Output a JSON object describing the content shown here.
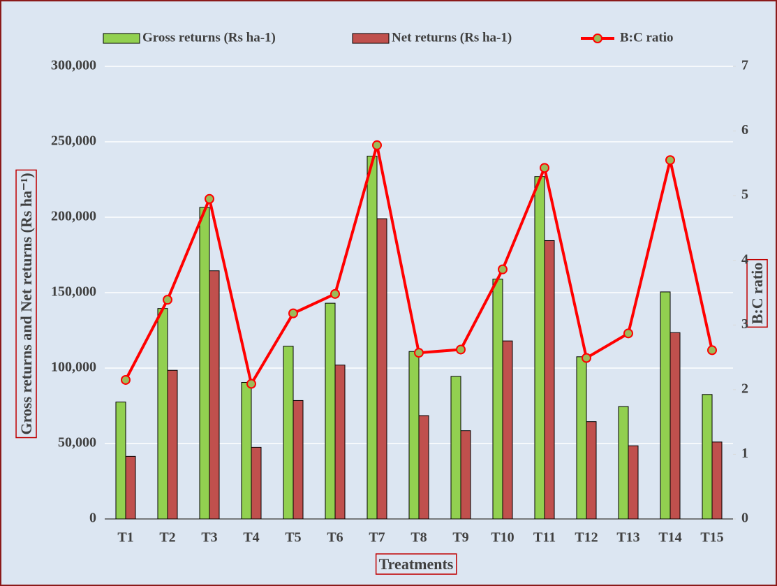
{
  "chart_data": {
    "type": "bar-line",
    "x_label": "Treatments",
    "y_label": "Gross returns and Net returns (Rs ha⁻¹)",
    "y2_label": "B:C ratio",
    "categories": [
      "T1",
      "T2",
      "T3",
      "T4",
      "T5",
      "T6",
      "T7",
      "T8",
      "T9",
      "T10",
      "T11",
      "T12",
      "T13",
      "T14",
      "T15"
    ],
    "series": [
      {
        "name": "Gross returns (Rs ha-1)",
        "type": "bar",
        "color": "#92d050",
        "values": [
          77500,
          139500,
          206500,
          90500,
          114500,
          143000,
          240500,
          111000,
          94500,
          159000,
          227000,
          107500,
          74500,
          150500,
          82500
        ]
      },
      {
        "name": "Net returns (Rs ha-1)",
        "type": "bar",
        "color": "#c0504d",
        "values": [
          41500,
          98500,
          164500,
          47500,
          78500,
          102000,
          199000,
          68500,
          58500,
          118000,
          184500,
          64500,
          48500,
          123500,
          51000
        ]
      },
      {
        "name": "B:C ratio",
        "type": "line",
        "axis": "y2",
        "color": "#ff0000",
        "marker_color": "#9bbb59",
        "values": [
          2.15,
          3.39,
          4.95,
          2.09,
          3.18,
          3.48,
          5.78,
          2.57,
          2.62,
          3.86,
          5.43,
          2.49,
          2.87,
          5.55,
          2.61
        ]
      }
    ],
    "ylim": [
      0,
      300000
    ],
    "yticks": [
      0,
      {
        "value": 50000,
        "label": "50,000"
      },
      {
        "value": 100000,
        "label": "100,000"
      },
      {
        "value": 150000,
        "label": "150,000"
      },
      {
        "value": 200000,
        "label": "200,000"
      },
      {
        "value": 250000,
        "label": "250,000"
      },
      {
        "value": 300000,
        "label": "300,000"
      }
    ],
    "y2lim": [
      0,
      7
    ],
    "y2ticks": [
      0,
      1,
      2,
      3,
      4,
      5,
      6,
      7
    ],
    "grid": true,
    "legend": "top"
  }
}
